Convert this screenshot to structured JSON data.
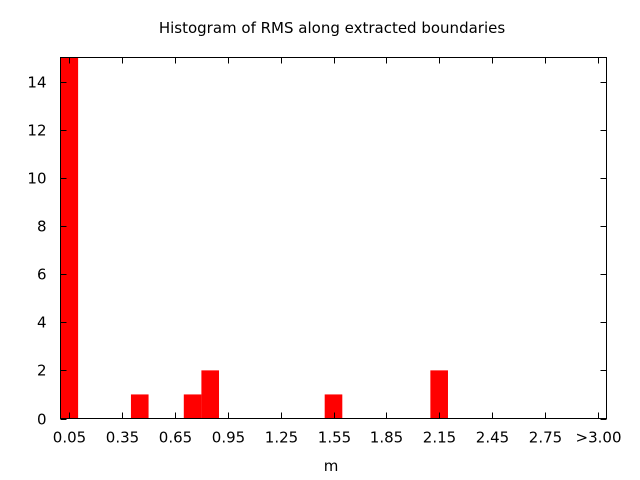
{
  "chart_data": {
    "type": "bar",
    "title": "Histogram of RMS along extracted boundaries",
    "xlabel": "m",
    "ylabel": "",
    "bin_width": 0.1,
    "x_range": [
      0.0,
      3.1
    ],
    "ylim": [
      0,
      15
    ],
    "x_tick_values": [
      0.05,
      0.35,
      0.65,
      0.95,
      1.25,
      1.55,
      1.85,
      2.15,
      2.45,
      2.75,
      3.05
    ],
    "x_tick_labels": [
      "0.05",
      "0.35",
      "0.65",
      "0.95",
      "1.25",
      "1.55",
      "1.85",
      "2.15",
      "2.45",
      "2.75",
      ">3.00"
    ],
    "y_ticks": [
      0,
      2,
      4,
      6,
      8,
      10,
      12,
      14
    ],
    "bins": [
      {
        "x": 0.05,
        "value": 15
      },
      {
        "x": 0.45,
        "value": 1
      },
      {
        "x": 0.75,
        "value": 1
      },
      {
        "x": 0.85,
        "value": 2
      },
      {
        "x": 1.55,
        "value": 1
      },
      {
        "x": 2.15,
        "value": 2
      }
    ],
    "bar_color": "#ff0000",
    "grid": false
  }
}
